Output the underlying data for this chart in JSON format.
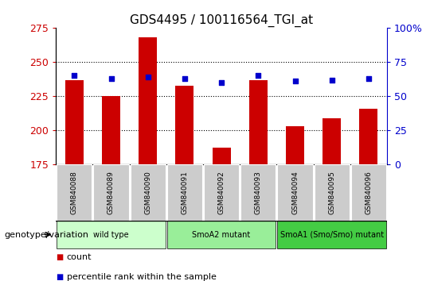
{
  "title": "GDS4495 / 100116564_TGI_at",
  "samples": [
    "GSM840088",
    "GSM840089",
    "GSM840090",
    "GSM840091",
    "GSM840092",
    "GSM840093",
    "GSM840094",
    "GSM840095",
    "GSM840096"
  ],
  "counts": [
    237,
    225,
    268,
    233,
    187,
    237,
    203,
    209,
    216
  ],
  "percentile_ranks": [
    65,
    63,
    64,
    63,
    60,
    65,
    61,
    62,
    63
  ],
  "ylim_left": [
    175,
    275
  ],
  "ylim_right": [
    0,
    100
  ],
  "yticks_left": [
    175,
    200,
    225,
    250,
    275
  ],
  "yticks_right": [
    0,
    25,
    50,
    75,
    100
  ],
  "bar_color": "#CC0000",
  "dot_color": "#0000CC",
  "groups": [
    {
      "label": "wild type",
      "indices": [
        0,
        1,
        2
      ],
      "color": "#CCFFCC"
    },
    {
      "label": "SmoA2 mutant",
      "indices": [
        3,
        4,
        5
      ],
      "color": "#99EE99"
    },
    {
      "label": "SmoA1 (Smo/Smo) mutant",
      "indices": [
        6,
        7,
        8
      ],
      "color": "#44CC44"
    }
  ],
  "legend_count_label": "count",
  "legend_pct_label": "percentile rank within the sample",
  "genotype_label": "genotype/variation",
  "tick_label_bg": "#CCCCCC",
  "title_fontsize": 11,
  "axis_fontsize": 8,
  "label_fontsize": 7,
  "legend_fontsize": 8
}
